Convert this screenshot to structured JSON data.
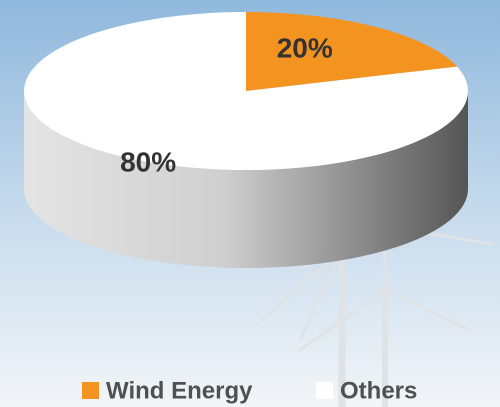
{
  "chart_data": {
    "type": "pie",
    "categories": [
      "Wind Energy",
      "Others"
    ],
    "values": [
      20,
      80
    ],
    "value_labels": [
      "20%",
      "80%"
    ],
    "colors": [
      "#f39320",
      "#ffffff"
    ],
    "legend": "bottom"
  }
}
